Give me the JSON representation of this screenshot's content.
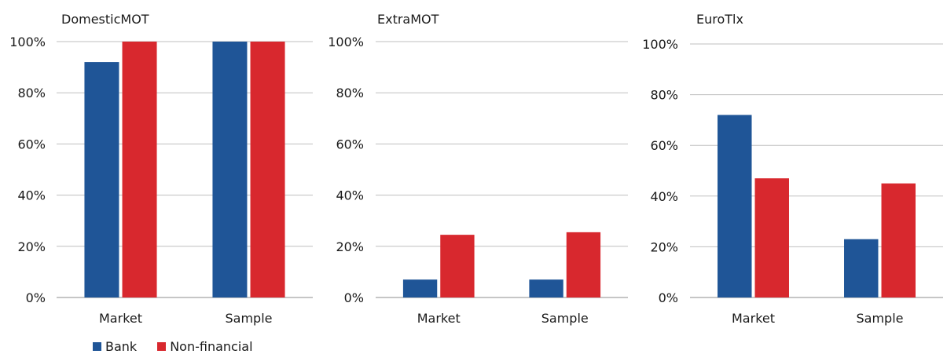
{
  "colors": {
    "bank": "#1f5597",
    "nonfinancial": "#d8282e",
    "grid": "#bfbfbf",
    "axis": "#8c8c8c"
  },
  "legend": {
    "bank_label": "Bank",
    "nonfinancial_label": "Non-financial"
  },
  "chart_data": [
    {
      "type": "bar",
      "title": "DomesticMOT",
      "categories": [
        "Market",
        "Sample"
      ],
      "series": [
        {
          "name": "Bank",
          "values": [
            92,
            100
          ]
        },
        {
          "name": "Non-financial",
          "values": [
            100,
            100
          ]
        }
      ],
      "ylim": [
        0,
        100
      ],
      "yticks": [
        "0%",
        "20%",
        "40%",
        "60%",
        "80%",
        "100%"
      ],
      "grid": true
    },
    {
      "type": "bar",
      "title": "ExtraMOT",
      "categories": [
        "Market",
        "Sample"
      ],
      "series": [
        {
          "name": "Bank",
          "values": [
            7,
            7
          ]
        },
        {
          "name": "Non-financial",
          "values": [
            24.5,
            25.5
          ]
        }
      ],
      "ylim": [
        0,
        100
      ],
      "yticks": [
        "0%",
        "20%",
        "40%",
        "60%",
        "80%",
        "100%"
      ],
      "grid": true
    },
    {
      "type": "bar",
      "title": "EuroTlx",
      "categories": [
        "Market",
        "Sample"
      ],
      "series": [
        {
          "name": "Bank",
          "values": [
            72,
            23
          ]
        },
        {
          "name": "Non-financial",
          "values": [
            47,
            45
          ]
        }
      ],
      "ylim": [
        0,
        100
      ],
      "yticks": [
        "0%",
        "20%",
        "40%",
        "60%",
        "80%",
        "100%"
      ],
      "grid": true
    }
  ]
}
